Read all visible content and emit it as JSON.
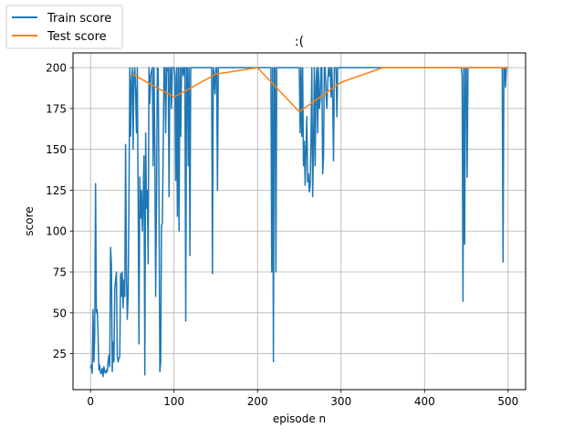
{
  "chart_data": {
    "type": "line",
    "title": ":(",
    "xlabel": "episode n",
    "ylabel": "score",
    "xlim": [
      -21,
      521
    ],
    "ylim": [
      3,
      209
    ],
    "x_ticks": [
      0,
      100,
      200,
      300,
      400,
      500
    ],
    "y_ticks": [
      25,
      50,
      75,
      100,
      125,
      150,
      175,
      200
    ],
    "grid": true,
    "legend_position": "top-left",
    "series": [
      {
        "name": "Train score",
        "color": "#1f77b4",
        "points": [
          [
            0,
            16
          ],
          [
            1,
            18
          ],
          [
            2,
            13
          ],
          [
            3,
            52
          ],
          [
            4,
            20
          ],
          [
            5,
            36
          ],
          [
            6,
            129
          ],
          [
            7,
            50
          ],
          [
            8,
            52
          ],
          [
            9,
            37
          ],
          [
            10,
            15
          ],
          [
            11,
            18
          ],
          [
            12,
            13
          ],
          [
            13,
            13
          ],
          [
            14,
            16
          ],
          [
            15,
            11
          ],
          [
            16,
            17
          ],
          [
            17,
            14
          ],
          [
            18,
            13
          ],
          [
            19,
            15
          ],
          [
            20,
            14
          ],
          [
            21,
            20
          ],
          [
            22,
            24
          ],
          [
            23,
            17
          ],
          [
            24,
            90
          ],
          [
            25,
            80
          ],
          [
            26,
            14
          ],
          [
            27,
            32
          ],
          [
            28,
            20
          ],
          [
            29,
            65
          ],
          [
            30,
            70
          ],
          [
            31,
            75
          ],
          [
            32,
            24
          ],
          [
            33,
            20
          ],
          [
            34,
            22
          ],
          [
            35,
            23
          ],
          [
            36,
            74
          ],
          [
            37,
            60
          ],
          [
            38,
            75
          ],
          [
            39,
            53
          ],
          [
            40,
            70
          ],
          [
            41,
            60
          ],
          [
            42,
            153
          ],
          [
            43,
            75
          ],
          [
            44,
            46
          ],
          [
            45,
            60
          ],
          [
            46,
            117
          ],
          [
            47,
            200
          ],
          [
            48,
            158
          ],
          [
            49,
            192
          ],
          [
            50,
            200
          ],
          [
            51,
            150
          ],
          [
            52,
            195
          ],
          [
            53,
            200
          ],
          [
            54,
            185
          ],
          [
            55,
            160
          ],
          [
            56,
            200
          ],
          [
            57,
            120
          ],
          [
            58,
            31
          ],
          [
            59,
            133
          ],
          [
            60,
            108
          ],
          [
            61,
            125
          ],
          [
            62,
            100
          ],
          [
            63,
            120
          ],
          [
            64,
            146
          ],
          [
            65,
            12
          ],
          [
            66,
            160
          ],
          [
            67,
            114
          ],
          [
            68,
            125
          ],
          [
            69,
            80
          ],
          [
            70,
            200
          ],
          [
            71,
            178
          ],
          [
            72,
            195
          ],
          [
            73,
            198
          ],
          [
            74,
            200
          ],
          [
            75,
            140
          ],
          [
            76,
            200
          ],
          [
            77,
            150
          ],
          [
            78,
            60
          ],
          [
            79,
            120
          ],
          [
            80,
            200
          ],
          [
            81,
            199
          ],
          [
            82,
            120
          ],
          [
            83,
            14
          ],
          [
            84,
            20
          ],
          [
            85,
            103
          ],
          [
            86,
            105
          ],
          [
            87,
            150
          ],
          [
            88,
            200
          ],
          [
            89,
            200
          ],
          [
            90,
            160
          ],
          [
            91,
            200
          ],
          [
            92,
            198
          ],
          [
            93,
            200
          ],
          [
            94,
            121
          ],
          [
            95,
            200
          ],
          [
            96,
            200
          ],
          [
            97,
            175
          ],
          [
            98,
            200
          ],
          [
            99,
            200
          ],
          [
            100,
            200
          ],
          [
            101,
            195
          ],
          [
            102,
            131
          ],
          [
            103,
            200
          ],
          [
            104,
            109
          ],
          [
            105,
            200
          ],
          [
            106,
            100
          ],
          [
            107,
            200
          ],
          [
            108,
            158
          ],
          [
            109,
            200
          ],
          [
            110,
            200
          ],
          [
            111,
            195
          ],
          [
            112,
            200
          ],
          [
            113,
            200
          ],
          [
            114,
            45
          ],
          [
            115,
            200
          ],
          [
            116,
            200
          ],
          [
            117,
            140
          ],
          [
            118,
            200
          ],
          [
            119,
            85
          ],
          [
            120,
            200
          ],
          [
            121,
            200
          ],
          [
            122,
            200
          ],
          [
            123,
            200
          ],
          [
            124,
            200
          ],
          [
            125,
            200
          ],
          [
            126,
            200
          ],
          [
            127,
            200
          ],
          [
            128,
            200
          ],
          [
            129,
            200
          ],
          [
            130,
            200
          ],
          [
            131,
            200
          ],
          [
            132,
            200
          ],
          [
            133,
            200
          ],
          [
            134,
            200
          ],
          [
            135,
            200
          ],
          [
            136,
            200
          ],
          [
            137,
            200
          ],
          [
            138,
            200
          ],
          [
            139,
            200
          ],
          [
            140,
            200
          ],
          [
            141,
            200
          ],
          [
            142,
            200
          ],
          [
            143,
            200
          ],
          [
            144,
            200
          ],
          [
            145,
            200
          ],
          [
            146,
            74
          ],
          [
            147,
            200
          ],
          [
            148,
            195
          ],
          [
            149,
            184
          ],
          [
            150,
            200
          ],
          [
            151,
            200
          ],
          [
            152,
            125
          ],
          [
            153,
            200
          ],
          [
            154,
            200
          ],
          [
            155,
            200
          ],
          [
            156,
            200
          ],
          [
            157,
            200
          ],
          [
            158,
            200
          ],
          [
            159,
            200
          ],
          [
            160,
            200
          ],
          [
            161,
            200
          ],
          [
            162,
            200
          ],
          [
            163,
            200
          ],
          [
            164,
            200
          ],
          [
            165,
            200
          ],
          [
            166,
            200
          ],
          [
            167,
            200
          ],
          [
            168,
            200
          ],
          [
            169,
            200
          ],
          [
            170,
            200
          ],
          [
            171,
            200
          ],
          [
            172,
            200
          ],
          [
            173,
            200
          ],
          [
            174,
            200
          ],
          [
            175,
            200
          ],
          [
            176,
            200
          ],
          [
            177,
            200
          ],
          [
            178,
            200
          ],
          [
            179,
            200
          ],
          [
            180,
            200
          ],
          [
            181,
            200
          ],
          [
            182,
            200
          ],
          [
            183,
            200
          ],
          [
            184,
            200
          ],
          [
            185,
            200
          ],
          [
            186,
            200
          ],
          [
            187,
            200
          ],
          [
            188,
            200
          ],
          [
            189,
            200
          ],
          [
            190,
            200
          ],
          [
            191,
            200
          ],
          [
            192,
            200
          ],
          [
            193,
            200
          ],
          [
            194,
            200
          ],
          [
            195,
            200
          ],
          [
            196,
            200
          ],
          [
            197,
            200
          ],
          [
            198,
            200
          ],
          [
            199,
            200
          ],
          [
            200,
            200
          ],
          [
            205,
            200
          ],
          [
            210,
            200
          ],
          [
            213,
            200
          ],
          [
            214,
            200
          ],
          [
            215,
            200
          ],
          [
            216,
            200
          ],
          [
            217,
            75
          ],
          [
            218,
            200
          ],
          [
            219,
            20
          ],
          [
            220,
            200
          ],
          [
            221,
            200
          ],
          [
            222,
            75
          ],
          [
            223,
            200
          ],
          [
            224,
            200
          ],
          [
            225,
            200
          ],
          [
            230,
            200
          ],
          [
            235,
            200
          ],
          [
            240,
            200
          ],
          [
            245,
            200
          ],
          [
            250,
            200
          ],
          [
            251,
            160
          ],
          [
            252,
            200
          ],
          [
            253,
            158
          ],
          [
            254,
            200
          ],
          [
            255,
            140
          ],
          [
            256,
            155
          ],
          [
            257,
            128
          ],
          [
            258,
            150
          ],
          [
            259,
            170
          ],
          [
            260,
            130
          ],
          [
            261,
            135
          ],
          [
            262,
            124
          ],
          [
            263,
            128
          ],
          [
            264,
            155
          ],
          [
            265,
            200
          ],
          [
            266,
            121
          ],
          [
            267,
            150
          ],
          [
            268,
            200
          ],
          [
            269,
            140
          ],
          [
            270,
            190
          ],
          [
            271,
            200
          ],
          [
            272,
            160
          ],
          [
            273,
            200
          ],
          [
            274,
            175
          ],
          [
            275,
            180
          ],
          [
            276,
            200
          ],
          [
            277,
            200
          ],
          [
            278,
            135
          ],
          [
            279,
            145
          ],
          [
            280,
            200
          ],
          [
            281,
            200
          ],
          [
            282,
            185
          ],
          [
            283,
            175
          ],
          [
            284,
            190
          ],
          [
            285,
            200
          ],
          [
            286,
            195
          ],
          [
            287,
            200
          ],
          [
            288,
            182
          ],
          [
            289,
            200
          ],
          [
            290,
            180
          ],
          [
            291,
            143
          ],
          [
            292,
            200
          ],
          [
            293,
            200
          ],
          [
            294,
            200
          ],
          [
            295,
            170
          ],
          [
            296,
            200
          ],
          [
            297,
            200
          ],
          [
            298,
            200
          ],
          [
            299,
            200
          ],
          [
            300,
            200
          ],
          [
            350,
            200
          ],
          [
            400,
            200
          ],
          [
            440,
            200
          ],
          [
            444,
            200
          ],
          [
            445,
            195
          ],
          [
            446,
            57
          ],
          [
            447,
            200
          ],
          [
            448,
            92
          ],
          [
            449,
            200
          ],
          [
            450,
            200
          ],
          [
            451,
            133
          ],
          [
            452,
            200
          ],
          [
            453,
            200
          ],
          [
            454,
            200
          ],
          [
            455,
            200
          ],
          [
            460,
            200
          ],
          [
            470,
            200
          ],
          [
            480,
            200
          ],
          [
            490,
            200
          ],
          [
            493,
            200
          ],
          [
            494,
            81
          ],
          [
            495,
            200
          ],
          [
            496,
            200
          ],
          [
            497,
            188
          ],
          [
            498,
            200
          ],
          [
            499,
            200
          ],
          [
            500,
            200
          ]
        ]
      },
      {
        "name": "Test score",
        "color": "#ff7f0e",
        "points": [
          [
            50,
            196
          ],
          [
            100,
            182
          ],
          [
            150,
            196
          ],
          [
            200,
            200
          ],
          [
            250,
            173
          ],
          [
            300,
            191
          ],
          [
            350,
            200
          ],
          [
            400,
            200
          ],
          [
            450,
            200
          ],
          [
            500,
            200
          ]
        ]
      }
    ]
  }
}
